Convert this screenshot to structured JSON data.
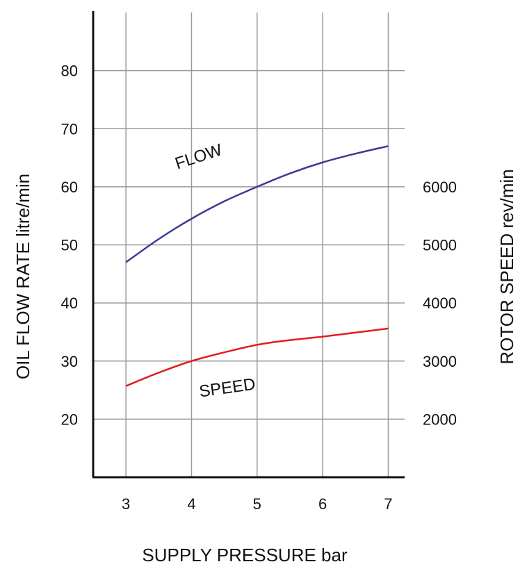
{
  "chart_data": {
    "type": "line",
    "title": "",
    "xlabel": "SUPPLY PRESSURE bar",
    "ylabel": "OIL FLOW RATE litre/min",
    "y2label": "ROTOR SPEED rev/min",
    "xlim": [
      2.5,
      7.25
    ],
    "ylim": [
      10,
      90
    ],
    "y2lim": [
      1000,
      9000
    ],
    "xticks": [
      3,
      4,
      5,
      6,
      7
    ],
    "yticks": [
      20,
      30,
      40,
      50,
      60,
      70,
      80
    ],
    "y2ticks": [
      2000,
      3000,
      4000,
      5000,
      6000
    ],
    "grid": true,
    "series": [
      {
        "name": "FLOW",
        "axis": "left",
        "color": "#3a3a96",
        "x": [
          3,
          3.5,
          4,
          4.5,
          5,
          5.5,
          6,
          6.5,
          7
        ],
        "y": [
          47,
          51,
          54.5,
          57.5,
          60,
          62.3,
          64.2,
          65.7,
          67
        ]
      },
      {
        "name": "SPEED",
        "axis": "right",
        "color": "#e01e1e",
        "x": [
          3,
          3.5,
          4,
          4.5,
          5,
          5.5,
          6,
          6.5,
          7
        ],
        "y": [
          2570,
          2800,
          3000,
          3150,
          3280,
          3360,
          3420,
          3490,
          3560
        ]
      }
    ]
  }
}
